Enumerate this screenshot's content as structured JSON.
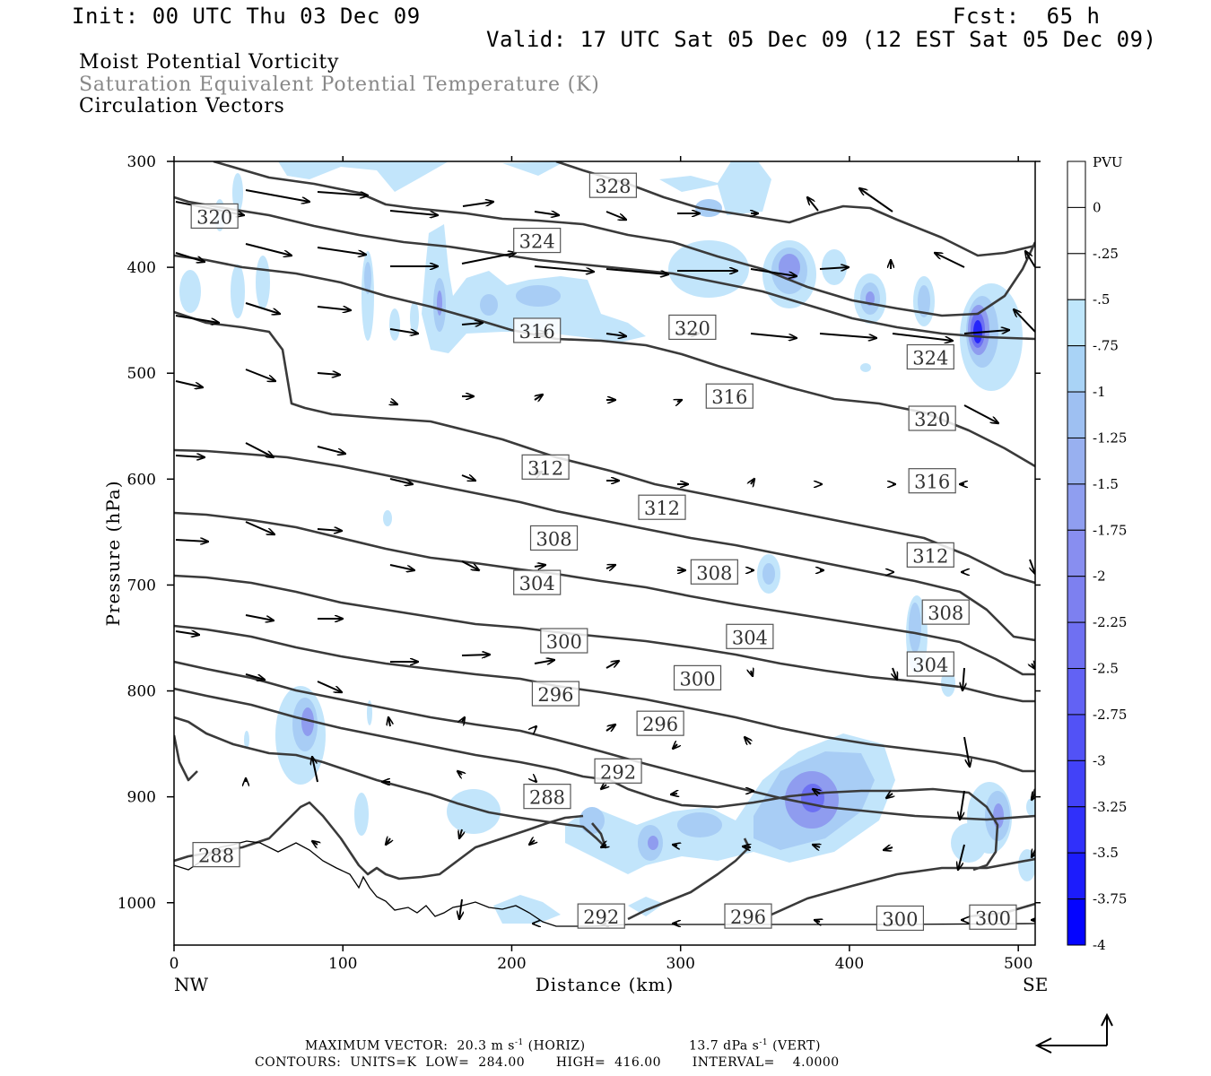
{
  "header": {
    "init": "Init: 00 UTC Thu 03 Dec 09",
    "fcst": "Fcst:  65 h",
    "valid": "Valid: 17 UTC Sat 05 Dec 09 (12 EST Sat 05 Dec 09)",
    "field1": "Moist Potential Vorticity",
    "field2": "Saturation Equivalent Potential Temperature (K)",
    "field3": "Circulation Vectors"
  },
  "footer": {
    "max_vector_label": "MAXIMUM VECTOR:",
    "horiz_value": "20.3 m s",
    "horiz_exp": "-1",
    "horiz_tag": " (HORIZ)",
    "vert_value": "13.7 dPa s",
    "vert_exp": "-1",
    "vert_tag": " (VERT)",
    "contours": "CONTOURS:  UNITS=K  LOW=  284.00       HIGH=  416.00       INTERVAL=    4.0000"
  },
  "colors": {
    "contour": "#3a3a3a",
    "pvu_scale": [
      "#ffffff",
      "#ffffff",
      "#bfe6fb",
      "#a9d3f6",
      "#9ec0f2",
      "#98b0f0",
      "#8f9ef0",
      "#888ef0",
      "#7d80f0",
      "#6f70f2",
      "#6262f4",
      "#5252f6",
      "#4242f8",
      "#3030fa",
      "#1c1cfc",
      "#0404ff"
    ]
  },
  "chart_data": {
    "type": "contour",
    "xlabel": "Distance (km)",
    "ylabel": "Pressure (hPa)",
    "xlim": [
      0,
      510
    ],
    "ylim": [
      300,
      1040
    ],
    "y_inverted": true,
    "x_ticks": [
      0,
      100,
      200,
      300,
      400,
      500
    ],
    "y_ticks": [
      300,
      400,
      500,
      600,
      700,
      800,
      900,
      1000
    ],
    "x_end_labels": [
      "NW",
      "SE"
    ],
    "colorbar": {
      "title": "PVU",
      "ticks": [
        "0",
        "-.25",
        "-.5",
        "-.75",
        "-1",
        "-1.25",
        "-1.5",
        "-1.75",
        "-2",
        "-2.25",
        "-2.5",
        "-2.75",
        "-3",
        "-3.25",
        "-3.5",
        "-3.75",
        "-4"
      ]
    },
    "contour_labels": [
      {
        "text": "328",
        "x": 260,
        "p": 323
      },
      {
        "text": "320",
        "x": 24,
        "p": 352
      },
      {
        "text": "324",
        "x": 215,
        "p": 375
      },
      {
        "text": "316",
        "x": 215,
        "p": 460
      },
      {
        "text": "320",
        "x": 307,
        "p": 457
      },
      {
        "text": "324",
        "x": 448,
        "p": 485
      },
      {
        "text": "316",
        "x": 329,
        "p": 522
      },
      {
        "text": "320",
        "x": 449,
        "p": 543
      },
      {
        "text": "312",
        "x": 220,
        "p": 589
      },
      {
        "text": "316",
        "x": 449,
        "p": 602
      },
      {
        "text": "312",
        "x": 289,
        "p": 627
      },
      {
        "text": "308",
        "x": 225,
        "p": 656
      },
      {
        "text": "312",
        "x": 448,
        "p": 672
      },
      {
        "text": "308",
        "x": 320,
        "p": 688
      },
      {
        "text": "304",
        "x": 215,
        "p": 698
      },
      {
        "text": "308",
        "x": 457,
        "p": 726
      },
      {
        "text": "304",
        "x": 341,
        "p": 749
      },
      {
        "text": "300",
        "x": 231,
        "p": 753
      },
      {
        "text": "304",
        "x": 448,
        "p": 775
      },
      {
        "text": "300",
        "x": 310,
        "p": 788
      },
      {
        "text": "296",
        "x": 226,
        "p": 803
      },
      {
        "text": "296",
        "x": 288,
        "p": 831
      },
      {
        "text": "292",
        "x": 263,
        "p": 876
      },
      {
        "text": "288",
        "x": 221,
        "p": 900
      },
      {
        "text": "288",
        "x": 25,
        "p": 955
      },
      {
        "text": "292",
        "x": 253,
        "p": 1013
      },
      {
        "text": "296",
        "x": 340,
        "p": 1013
      },
      {
        "text": "300",
        "x": 430,
        "p": 1015
      },
      {
        "text": "300",
        "x": 485,
        "p": 1014
      }
    ]
  }
}
